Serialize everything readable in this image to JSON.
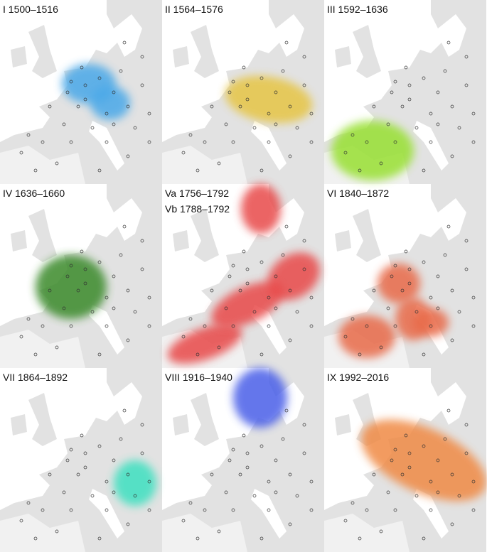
{
  "panels": [
    {
      "labels": [
        "I 1500–1516"
      ],
      "color": "#4aa8e8"
    },
    {
      "labels": [
        "II 1564–1576"
      ],
      "color": "#e6c545"
    },
    {
      "labels": [
        "III 1592–1636"
      ],
      "color": "#98e033"
    },
    {
      "labels": [
        "IV 1636–1660"
      ],
      "color": "#3a8a2a"
    },
    {
      "labels": [
        "Va 1756–1792",
        "Vb 1788–1792"
      ],
      "color": "#e84848"
    },
    {
      "labels": [
        "VI 1840–1872"
      ],
      "color": "#e86a48"
    },
    {
      "labels": [
        "VII 1864–1892"
      ],
      "color": "#3ee0c0"
    },
    {
      "labels": [
        "VIII 1916–1940"
      ],
      "color": "#4a5ee8"
    },
    {
      "labels": [
        "IX 1992–2016"
      ],
      "color": "#f08a45"
    }
  ]
}
